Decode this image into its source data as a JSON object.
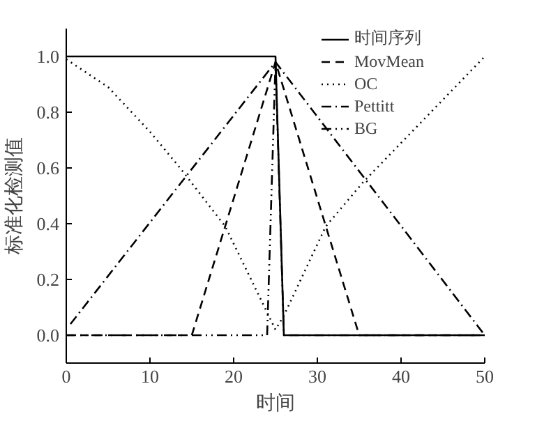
{
  "chart_data": {
    "type": "line",
    "xlabel": "时间",
    "ylabel": "标准化检测值",
    "xlim": [
      0,
      50
    ],
    "ylim": [
      -0.1,
      1.1
    ],
    "xticks": [
      0,
      10,
      20,
      30,
      40,
      50
    ],
    "yticks": [
      {
        "value": 0,
        "label": "0.0"
      },
      {
        "value": 0.2,
        "label": "0.2"
      },
      {
        "value": 0.4,
        "label": "0.4"
      },
      {
        "value": 0.6,
        "label": "0.6"
      },
      {
        "value": 0.8,
        "label": "0.8"
      },
      {
        "value": 1,
        "label": "1.0"
      }
    ],
    "grid": false,
    "legend": "top right",
    "marker": "none",
    "series": [
      {
        "name": "时间序列",
        "color": "#000000",
        "line_style": "solid",
        "x": [
          0,
          25,
          26,
          50
        ],
        "values": [
          1,
          1,
          0,
          0
        ]
      },
      {
        "name": "MovMean",
        "color": "#000000",
        "line_style": "dashed",
        "x": [
          0,
          15,
          25,
          35,
          50
        ],
        "values": [
          0,
          0,
          0.98,
          0,
          0
        ]
      },
      {
        "name": "OC",
        "color": "#000000",
        "line_style": "dotted",
        "x": [
          0,
          5,
          10,
          13.6,
          19,
          25,
          26,
          31,
          35.5,
          50
        ],
        "values": [
          0.99,
          0.89,
          0.73,
          0.6,
          0.39,
          0.02,
          0.07,
          0.39,
          0.55,
          1.0
        ]
      },
      {
        "name": "Pettitt",
        "color": "#000000",
        "line_style": "dashdot",
        "x": [
          0.5,
          25,
          50
        ],
        "values": [
          0.04,
          0.98,
          0
        ]
      },
      {
        "name": "BG",
        "color": "#000000",
        "line_style": "dashdotdot",
        "x": [
          0,
          24,
          25,
          26,
          50
        ],
        "values": [
          0,
          0,
          0.98,
          0,
          0
        ]
      }
    ]
  }
}
